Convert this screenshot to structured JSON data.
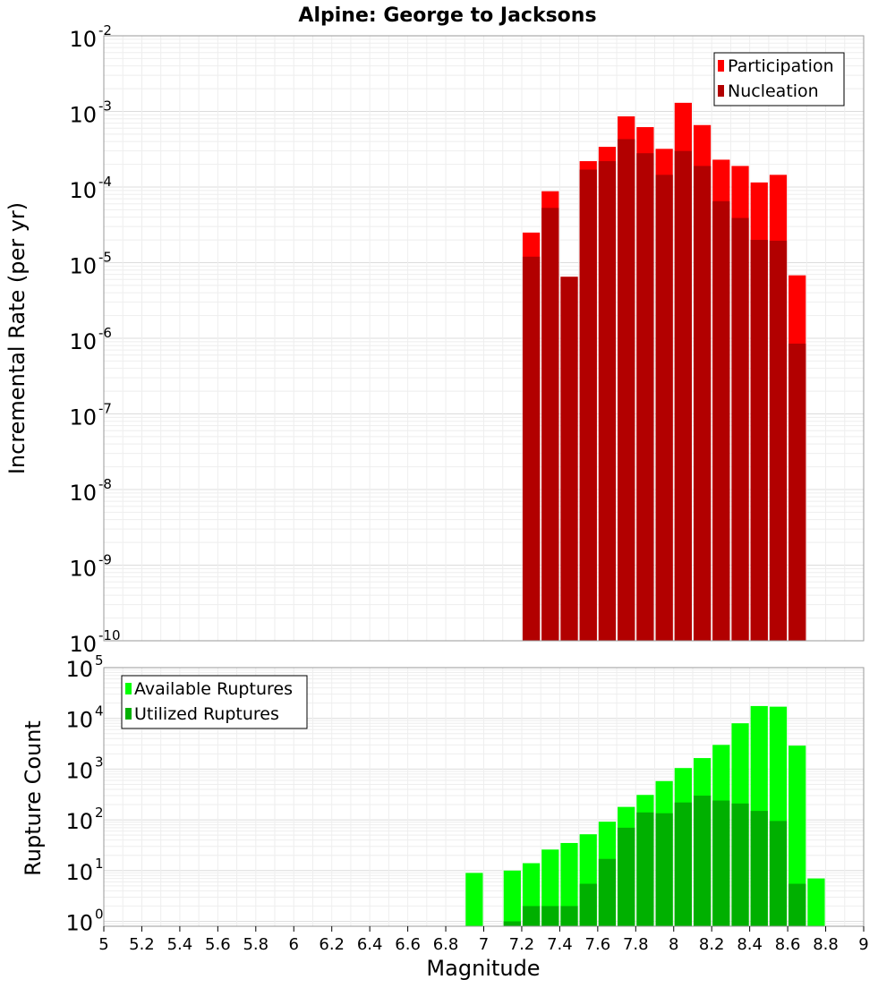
{
  "chart_data": [
    {
      "type": "bar",
      "title": "Alpine: George to Jacksons",
      "xlabel": "",
      "ylabel": "Incremental Rate (per yr)",
      "yscale": "log",
      "ylim": [
        1e-10,
        0.01
      ],
      "xlim": [
        5,
        9
      ],
      "grid": true,
      "legend_position": "top-right",
      "x": [
        7.2,
        7.3,
        7.4,
        7.5,
        7.6,
        7.7,
        7.8,
        7.9,
        8.0,
        8.1,
        8.2,
        8.3,
        8.4,
        8.5,
        8.6
      ],
      "series": [
        {
          "name": "Participation",
          "color": "#ff0000",
          "values": [
            2.5e-05,
            8.8e-05,
            6.5e-06,
            0.00022,
            0.00034,
            0.00086,
            0.00062,
            0.00032,
            0.0013,
            0.00066,
            0.00023,
            0.00019,
            0.000115,
            0.000145,
            6.8e-06
          ]
        },
        {
          "name": "Nucleation",
          "color": "#b20000",
          "values": [
            1.2e-05,
            5.3e-05,
            6.5e-06,
            0.00017,
            0.00022,
            0.00043,
            0.00028,
            0.000145,
            0.0003,
            0.00019,
            6.5e-05,
            3.9e-05,
            2e-05,
            1.95e-05,
            8.5e-07
          ]
        }
      ]
    },
    {
      "type": "bar",
      "title": "",
      "xlabel": "Magnitude",
      "ylabel": "Rupture Count",
      "yscale": "log",
      "ylim": [
        0.8,
        100000
      ],
      "xlim": [
        5,
        9
      ],
      "grid": true,
      "legend_position": "top-left",
      "x": [
        6.9,
        7.0,
        7.1,
        7.2,
        7.3,
        7.4,
        7.5,
        7.6,
        7.7,
        7.8,
        7.9,
        8.0,
        8.1,
        8.2,
        8.3,
        8.4,
        8.5,
        8.6,
        8.7
      ],
      "series": [
        {
          "name": "Available Ruptures",
          "color": "#00ff00",
          "values": [
            9,
            0,
            10,
            14,
            26,
            35,
            52,
            92,
            180,
            310,
            580,
            1050,
            1650,
            3000,
            8000,
            17500,
            17000,
            2900,
            7
          ]
        },
        {
          "name": "Utilized Ruptures",
          "color": "#00b000",
          "values": [
            0,
            0,
            1,
            2,
            2,
            2,
            5.5,
            17,
            70,
            140,
            135,
            220,
            300,
            240,
            210,
            150,
            95,
            5.5,
            0
          ]
        }
      ],
      "xticks": [
        "5",
        "5.2",
        "5.4",
        "5.6",
        "5.8",
        "6",
        "6.2",
        "6.4",
        "6.6",
        "6.8",
        "7",
        "7.2",
        "7.4",
        "7.6",
        "7.8",
        "8",
        "8.2",
        "8.4",
        "8.6",
        "8.8",
        "9"
      ]
    }
  ],
  "axis_tick_labels": {
    "exp_top": [
      "-2",
      "-3",
      "-4",
      "-5",
      "-6",
      "-7",
      "-8",
      "-9",
      "-10"
    ],
    "exp_bottom": [
      "5",
      "4",
      "3",
      "2",
      "1",
      "0"
    ],
    "base": "10"
  }
}
